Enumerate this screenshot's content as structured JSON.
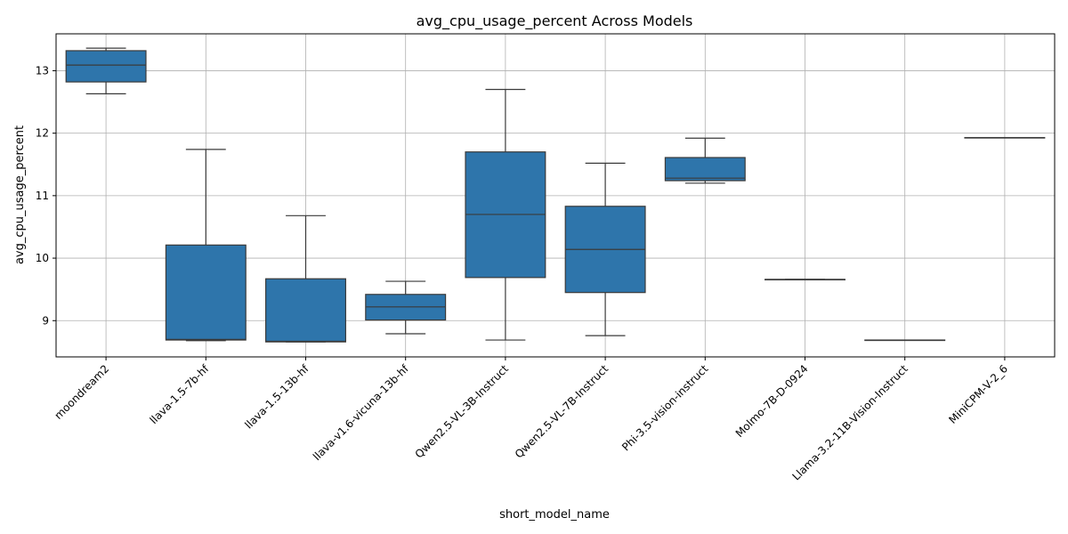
{
  "chart_data": {
    "type": "box",
    "title": "avg_cpu_usage_percent Across Models",
    "xlabel": "short_model_name",
    "ylabel": "avg_cpu_usage_percent",
    "ylim": [
      8.42,
      13.59
    ],
    "yticks": [
      9,
      10,
      11,
      12,
      13
    ],
    "grid": true,
    "box_color": "#2e75ab",
    "line_color": "#3a3a3a",
    "categories": [
      "moondream2",
      "llava-1.5-7b-hf",
      "llava-1.5-13b-hf",
      "llava-v1.6-vicuna-13b-hf",
      "Qwen2.5-VL-3B-Instruct",
      "Qwen2.5-VL-7B-Instruct",
      "Phi-3.5-vision-instruct",
      "Molmo-7B-D-0924",
      "Llama-3.2-11B-Vision-Instruct",
      "MiniCPM-V-2_6"
    ],
    "boxes": [
      {
        "min": 12.63,
        "q1": 12.82,
        "median": 13.09,
        "q3": 13.32,
        "max": 13.36
      },
      {
        "min": 8.68,
        "q1": 8.69,
        "median": 8.7,
        "q3": 10.21,
        "max": 11.74
      },
      {
        "min": 8.66,
        "q1": 8.66,
        "median": 8.67,
        "q3": 9.67,
        "max": 10.68
      },
      {
        "min": 8.79,
        "q1": 9.01,
        "median": 9.22,
        "q3": 9.42,
        "max": 9.63
      },
      {
        "min": 8.69,
        "q1": 9.69,
        "median": 10.7,
        "q3": 11.7,
        "max": 12.7
      },
      {
        "min": 8.76,
        "q1": 9.45,
        "median": 10.14,
        "q3": 10.83,
        "max": 11.52
      },
      {
        "min": 11.2,
        "q1": 11.24,
        "median": 11.28,
        "q3": 11.61,
        "max": 11.92
      },
      {
        "min": 9.66,
        "q1": 9.66,
        "median": 9.66,
        "q3": 9.66,
        "max": 9.66
      },
      {
        "min": 8.69,
        "q1": 8.69,
        "median": 8.69,
        "q3": 8.69,
        "max": 8.69
      },
      {
        "min": 11.93,
        "q1": 11.93,
        "median": 11.93,
        "q3": 11.93,
        "max": 11.93
      }
    ]
  }
}
